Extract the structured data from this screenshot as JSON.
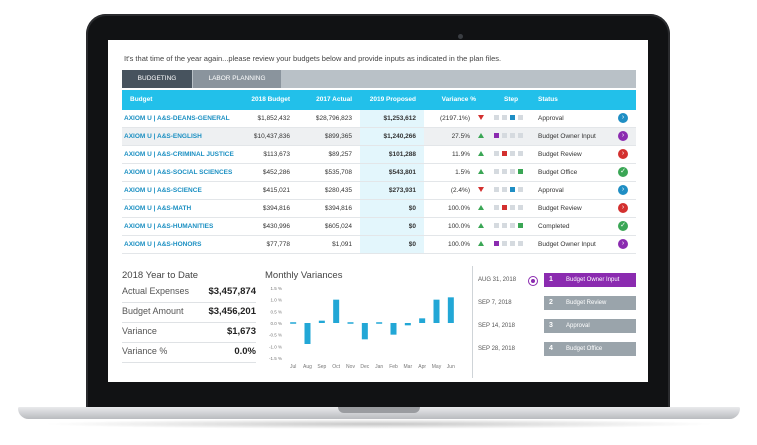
{
  "intro_text": "It's that time of the year again...please review your budgets below and provide inputs as indicated in the plan files.",
  "tabs": [
    {
      "label": "BUDGETING",
      "active": true
    },
    {
      "label": "LABOR PLANNING",
      "active": false
    }
  ],
  "table": {
    "headers": {
      "budget": "Budget",
      "y2018": "2018 Budget",
      "y2017": "2017 Actual",
      "y2019": "2019 Proposed",
      "variance": "Variance %",
      "step": "Step",
      "status": "Status"
    },
    "rows": [
      {
        "name": "AXIOM U | A&S-DEANS-GENERAL",
        "budget_2018": "$1,852,432",
        "actual_2017": "$28,796,823",
        "proposed_2019": "$1,253,612",
        "variance": "(2197.1%)",
        "trend": "down",
        "steps": [
          "#d5dadf",
          "#d5dadf",
          "#1f8ec4",
          "#d5dadf"
        ],
        "status": "Approval",
        "status_color": "#1f8ec4",
        "status_icon": "arrow-right-icon",
        "highlight": false
      },
      {
        "name": "AXIOM U | A&S-ENGLISH",
        "budget_2018": "$10,437,836",
        "actual_2017": "$899,365",
        "proposed_2019": "$1,240,266",
        "variance": "27.5%",
        "trend": "up",
        "steps": [
          "#8b2bb0",
          "#d5dadf",
          "#d5dadf",
          "#d5dadf"
        ],
        "status": "Budget Owner Input",
        "status_color": "#8b2bb0",
        "status_icon": "arrow-right-icon",
        "highlight": true
      },
      {
        "name": "AXIOM U | A&S-CRIMINAL JUSTICE",
        "budget_2018": "$113,673",
        "actual_2017": "$89,257",
        "proposed_2019": "$101,288",
        "variance": "11.9%",
        "trend": "up",
        "steps": [
          "#d5dadf",
          "#d3302f",
          "#d5dadf",
          "#d5dadf"
        ],
        "status": "Budget Review",
        "status_color": "#d3302f",
        "status_icon": "arrow-right-icon",
        "highlight": false
      },
      {
        "name": "AXIOM U | A&S-SOCIAL SCIENCES",
        "budget_2018": "$452,286",
        "actual_2017": "$535,708",
        "proposed_2019": "$543,801",
        "variance": "1.5%",
        "trend": "up",
        "steps": [
          "#d5dadf",
          "#d5dadf",
          "#d5dadf",
          "#3aa655"
        ],
        "status": "Budget Office",
        "status_color": "#3aa655",
        "status_icon": "check-icon",
        "highlight": false
      },
      {
        "name": "AXIOM U | A&S-SCIENCE",
        "budget_2018": "$415,021",
        "actual_2017": "$280,435",
        "proposed_2019": "$273,931",
        "variance": "(2.4%)",
        "trend": "down",
        "steps": [
          "#d5dadf",
          "#d5dadf",
          "#1f8ec4",
          "#d5dadf"
        ],
        "status": "Approval",
        "status_color": "#1f8ec4",
        "status_icon": "arrow-right-icon",
        "highlight": false
      },
      {
        "name": "AXIOM U | A&S-MATH",
        "budget_2018": "$394,816",
        "actual_2017": "$394,816",
        "proposed_2019": "$0",
        "variance": "100.0%",
        "trend": "up",
        "steps": [
          "#d5dadf",
          "#d3302f",
          "#d5dadf",
          "#d5dadf"
        ],
        "status": "Budget Review",
        "status_color": "#d3302f",
        "status_icon": "arrow-right-icon",
        "highlight": false
      },
      {
        "name": "AXIOM U | A&S-HUMANITIES",
        "budget_2018": "$430,996",
        "actual_2017": "$605,024",
        "proposed_2019": "$0",
        "variance": "100.0%",
        "trend": "up",
        "steps": [
          "#d5dadf",
          "#d5dadf",
          "#d5dadf",
          "#3aa655"
        ],
        "status": "Completed",
        "status_color": "#3aa655",
        "status_icon": "check-icon",
        "highlight": false
      },
      {
        "name": "AXIOM U | A&S-HONORS",
        "budget_2018": "$77,778",
        "actual_2017": "$1,091",
        "proposed_2019": "$0",
        "variance": "100.0%",
        "trend": "up",
        "steps": [
          "#8b2bb0",
          "#d5dadf",
          "#d5dadf",
          "#d5dadf"
        ],
        "status": "Budget Owner Input",
        "status_color": "#8b2bb0",
        "status_icon": "arrow-right-icon",
        "highlight": false
      }
    ]
  },
  "summary": {
    "title": "2018 Year to Date",
    "items": [
      {
        "label": "Actual Expenses",
        "value": "$3,457,874"
      },
      {
        "label": "Budget Amount",
        "value": "$3,456,201"
      },
      {
        "label": "Variance",
        "value": "$1,673"
      },
      {
        "label": "Variance %",
        "value": "0.0%"
      }
    ]
  },
  "chart_title": "Monthly Variances",
  "chart_data": {
    "type": "bar",
    "title": "Monthly Variances",
    "categories": [
      "Jul",
      "Aug",
      "Sep",
      "Oct",
      "Nov",
      "Dec",
      "Jan",
      "Feb",
      "Mar",
      "Apr",
      "May",
      "Jun"
    ],
    "values": [
      0.0,
      -0.9,
      0.1,
      1.0,
      0.0,
      -0.7,
      0.0,
      -0.5,
      -0.1,
      0.2,
      1.0,
      1.1
    ],
    "ytick_labels": [
      "1.5 %",
      "1.0 %",
      "0.5 %",
      "0.0 %",
      "-0.5 %",
      "-1.0 %",
      "-1.5 %"
    ],
    "ylim": [
      -1.5,
      1.5
    ],
    "color": "#22a7d6",
    "grid": false
  },
  "timeline": [
    {
      "date": "AUG 31, 2018",
      "num": "1",
      "label": "Budget Owner Input",
      "color": "#8b2bb0",
      "current": true
    },
    {
      "date": "SEP 7, 2018",
      "num": "2",
      "label": "Budget Review",
      "color": "#9aa4ab",
      "current": false
    },
    {
      "date": "SEP 14, 2018",
      "num": "3",
      "label": "Approval",
      "color": "#9aa4ab",
      "current": false
    },
    {
      "date": "SEP 28, 2018",
      "num": "4",
      "label": "Budget Office",
      "color": "#9aa4ab",
      "current": false
    }
  ]
}
